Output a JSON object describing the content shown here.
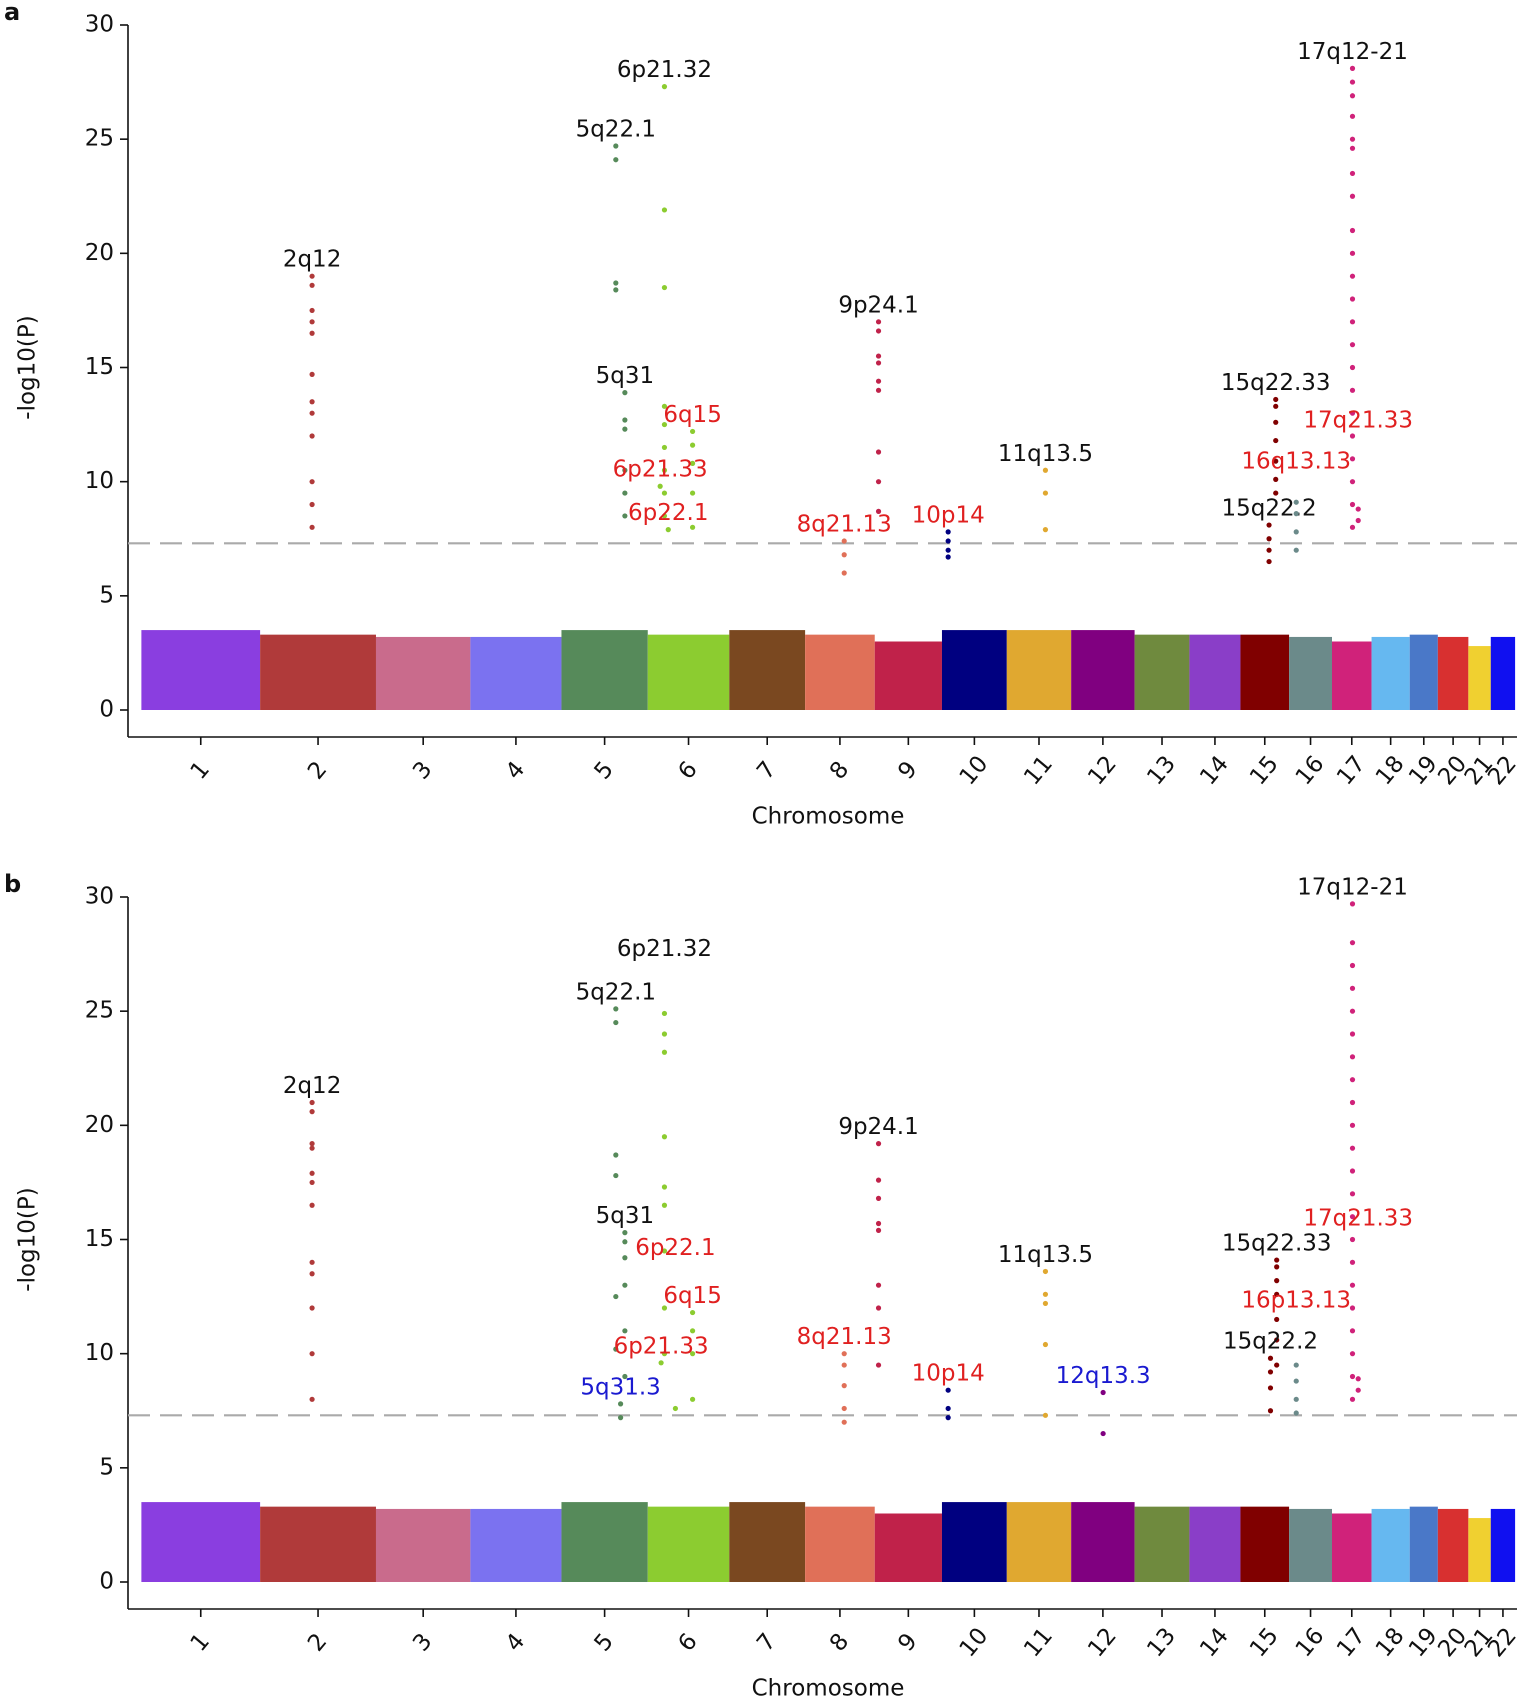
{
  "chart_data": [
    {
      "type": "scatter",
      "panel": "a",
      "xlabel": "Chromosome",
      "ylabel": "-log10(P)",
      "ylim": [
        0,
        30
      ],
      "yticks": [
        0,
        5,
        10,
        15,
        20,
        25,
        30
      ],
      "xlim": [
        -5,
        2885
      ],
      "threshold": 7.3,
      "series": [
        {
          "name": "1",
          "color": "#8a3ee0",
          "span": [
            0,
            249
          ],
          "background": 3.5,
          "loci": []
        },
        {
          "name": "2",
          "color": "#b03a3a",
          "span": [
            249,
            492
          ],
          "background": 3.3,
          "loci": [
            {
              "label": "2q12",
              "label_color": "#111111",
              "x": 358,
              "values": [
                19,
                18.6,
                17.5,
                17,
                16.5,
                14.7,
                13.5,
                13,
                12,
                10,
                9,
                8
              ]
            }
          ]
        },
        {
          "name": "3",
          "color": "#c96b8c",
          "span": [
            492,
            690
          ],
          "background": 3.2,
          "loci": []
        },
        {
          "name": "4",
          "color": "#7b72f0",
          "span": [
            690,
            881
          ],
          "background": 3.2,
          "loci": []
        },
        {
          "name": "5",
          "color": "#568a5a",
          "span": [
            881,
            1062
          ],
          "background": 3.5,
          "loci": [
            {
              "label": "5q22.1",
              "label_color": "#111111",
              "x": 995,
              "values": [
                24.7,
                24.1,
                18.7,
                18.4
              ]
            },
            {
              "label": "5q31",
              "label_color": "#111111",
              "x": 1014,
              "values": [
                13.9,
                12.7,
                12.3,
                10.5,
                9.5,
                8.5
              ]
            }
          ]
        },
        {
          "name": "6",
          "color": "#8ccc30",
          "span": [
            1062,
            1233
          ],
          "background": 3.3,
          "loci": [
            {
              "label": "6p21.32",
              "label_color": "#111111",
              "x": 1097,
              "values": [
                27.3,
                21.9,
                18.5,
                13.3,
                12.5,
                11.5,
                10.5,
                9.5,
                8.5
              ]
            },
            {
              "label": "6q15",
              "label_color": "#e02020",
              "x": 1156,
              "values": [
                12.2,
                11.6,
                10.8,
                9.5,
                8
              ]
            },
            {
              "label": "6p21.33",
              "label_color": "#e02020",
              "x": 1088,
              "values": [
                9.8
              ]
            },
            {
              "label": "6p22.1",
              "label_color": "#e02020",
              "x": 1105,
              "values": [
                7.9
              ]
            }
          ]
        },
        {
          "name": "7",
          "color": "#7a4820",
          "span": [
            1233,
            1392
          ],
          "background": 3.5,
          "loci": []
        },
        {
          "name": "8",
          "color": "#e07058",
          "span": [
            1392,
            1538
          ],
          "background": 3.3,
          "loci": [
            {
              "label": "8q21.13",
              "label_color": "#e02020",
              "x": 1474,
              "values": [
                7.4,
                6.8,
                6
              ]
            }
          ]
        },
        {
          "name": "9",
          "color": "#c0224a",
          "span": [
            1538,
            1679
          ],
          "background": 3.0,
          "loci": [
            {
              "label": "9p24.1",
              "label_color": "#111111",
              "x": 1546,
              "values": [
                17,
                16.6,
                15.5,
                15.2,
                14.4,
                14,
                11.3,
                10,
                8.7
              ]
            }
          ]
        },
        {
          "name": "10",
          "color": "#000080",
          "span": [
            1679,
            1815
          ],
          "background": 3.5,
          "loci": [
            {
              "label": "10p14",
              "label_color": "#e02020",
              "x": 1692,
              "values": [
                7.8,
                7.4,
                7,
                6.7
              ]
            }
          ]
        },
        {
          "name": "11",
          "color": "#e0a830",
          "span": [
            1815,
            1950
          ],
          "background": 3.5,
          "loci": [
            {
              "label": "11q13.5",
              "label_color": "#111111",
              "x": 1896,
              "values": [
                10.5,
                9.5,
                7.9
              ]
            }
          ]
        },
        {
          "name": "12",
          "color": "#800080",
          "span": [
            1950,
            2083
          ],
          "background": 3.5,
          "loci": []
        },
        {
          "name": "13",
          "color": "#6f8a3e",
          "span": [
            2083,
            2198
          ],
          "background": 3.3,
          "loci": []
        },
        {
          "name": "14",
          "color": "#8a3ec8",
          "span": [
            2198,
            2305
          ],
          "background": 3.3,
          "loci": []
        },
        {
          "name": "15",
          "color": "#800000",
          "span": [
            2305,
            2407
          ],
          "background": 3.3,
          "loci": [
            {
              "label": "15q22.33",
              "label_color": "#111111",
              "x": 2379,
              "values": [
                13.6,
                13.3,
                12.6,
                11.8,
                10.9,
                10.1,
                9.5
              ]
            },
            {
              "label": "15q22.2",
              "label_color": "#111111",
              "x": 2365,
              "values": [
                8.1,
                7.5,
                7,
                6.5
              ]
            }
          ]
        },
        {
          "name": "16",
          "color": "#6b8a8a",
          "span": [
            2407,
            2497
          ],
          "background": 3.2,
          "loci": [
            {
              "label": "16q13.13",
              "label_color": "#e02020",
              "x": 2422,
              "values": [
                9.1,
                8.6,
                7.8,
                7
              ]
            }
          ]
        },
        {
          "name": "17",
          "color": "#d0227a",
          "span": [
            2497,
            2580
          ],
          "background": 3.0,
          "loci": [
            {
              "label": "17q12-21",
              "label_color": "#111111",
              "x": 2540,
              "values": [
                28.1,
                27.5,
                26.9,
                26,
                25,
                24.6,
                23.5,
                22.5,
                21,
                20,
                19,
                18,
                17,
                16,
                15,
                14,
                13,
                12,
                11,
                10,
                9,
                8
              ]
            },
            {
              "label": "17q21.33",
              "label_color": "#e02020",
              "x": 2552,
              "values": [
                8.8,
                8.3
              ]
            }
          ]
        },
        {
          "name": "18",
          "color": "#66b8f0",
          "span": [
            2580,
            2660
          ],
          "background": 3.2,
          "loci": []
        },
        {
          "name": "19",
          "color": "#4a78c8",
          "span": [
            2660,
            2719
          ],
          "background": 3.3,
          "loci": []
        },
        {
          "name": "20",
          "color": "#d83030",
          "span": [
            2719,
            2783
          ],
          "background": 3.2,
          "loci": []
        },
        {
          "name": "21",
          "color": "#f0d030",
          "span": [
            2783,
            2830
          ],
          "background": 2.8,
          "loci": []
        },
        {
          "name": "22",
          "color": "#1010f0",
          "span": [
            2830,
            2881
          ],
          "background": 3.2,
          "loci": []
        }
      ]
    },
    {
      "type": "scatter",
      "panel": "b",
      "xlabel": "Chromosome",
      "ylabel": "-log10(P)",
      "ylim": [
        0,
        30
      ],
      "yticks": [
        0,
        5,
        10,
        15,
        20,
        25,
        30
      ],
      "xlim": [
        -5,
        2885
      ],
      "threshold": 7.3,
      "series": [
        {
          "name": "1",
          "color": "#8a3ee0",
          "span": [
            0,
            249
          ],
          "background": 3.5,
          "loci": []
        },
        {
          "name": "2",
          "color": "#b03a3a",
          "span": [
            249,
            492
          ],
          "background": 3.3,
          "loci": [
            {
              "label": "2q12",
              "label_color": "#111111",
              "x": 358,
              "values": [
                21,
                20.6,
                19.2,
                19,
                17.9,
                17.5,
                16.5,
                14,
                13.5,
                12,
                10,
                8
              ]
            }
          ]
        },
        {
          "name": "3",
          "color": "#c96b8c",
          "span": [
            492,
            690
          ],
          "background": 3.2,
          "loci": []
        },
        {
          "name": "4",
          "color": "#7b72f0",
          "span": [
            690,
            881
          ],
          "background": 3.2,
          "loci": []
        },
        {
          "name": "5",
          "color": "#568a5a",
          "span": [
            881,
            1062
          ],
          "background": 3.5,
          "loci": [
            {
              "label": "5q22.1",
              "label_color": "#111111",
              "x": 995,
              "values": [
                25.1,
                24.5,
                18.7,
                17.8,
                12.5,
                10.2
              ]
            },
            {
              "label": "5q31",
              "label_color": "#111111",
              "x": 1014,
              "values": [
                15.3,
                14.9,
                14.2,
                13,
                11,
                9
              ]
            },
            {
              "label": "5q31.3",
              "label_color": "#1a1ad0",
              "x": 1005,
              "values": [
                7.8,
                7.2
              ]
            }
          ]
        },
        {
          "name": "6",
          "color": "#8ccc30",
          "span": [
            1062,
            1233
          ],
          "background": 3.3,
          "loci": [
            {
              "label": "6p21.32",
              "label_color": "#111111",
              "x": 1097,
              "values": [
                24.9,
                24,
                23.2,
                19.5,
                17.3,
                16.5,
                14.5,
                12,
                10
              ]
            },
            {
              "label": "6q15",
              "label_color": "#e02020",
              "x": 1156,
              "values": [
                11.8,
                11,
                10,
                8
              ]
            },
            {
              "label": "6p21.33",
              "label_color": "#e02020",
              "x": 1090,
              "values": [
                9.6
              ]
            },
            {
              "label": "6p22.1",
              "label_color": "#e02020",
              "x": 1120,
              "values": [
                7.6
              ]
            }
          ]
        },
        {
          "name": "7",
          "color": "#7a4820",
          "span": [
            1233,
            1392
          ],
          "background": 3.5,
          "loci": []
        },
        {
          "name": "8",
          "color": "#e07058",
          "span": [
            1392,
            1538
          ],
          "background": 3.3,
          "loci": [
            {
              "label": "8q21.13",
              "label_color": "#e02020",
              "x": 1474,
              "values": [
                10,
                9.5,
                8.6,
                7.6,
                7
              ]
            }
          ]
        },
        {
          "name": "9",
          "color": "#c0224a",
          "span": [
            1538,
            1679
          ],
          "background": 3.0,
          "loci": [
            {
              "label": "9p24.1",
              "label_color": "#111111",
              "x": 1546,
              "values": [
                19.2,
                17.6,
                16.8,
                15.7,
                15.4,
                13,
                12,
                9.5
              ]
            }
          ]
        },
        {
          "name": "10",
          "color": "#000080",
          "span": [
            1679,
            1815
          ],
          "background": 3.5,
          "loci": [
            {
              "label": "10p14",
              "label_color": "#e02020",
              "x": 1692,
              "values": [
                8.4,
                7.6,
                7.2
              ]
            }
          ]
        },
        {
          "name": "11",
          "color": "#e0a830",
          "span": [
            1815,
            1950
          ],
          "background": 3.5,
          "loci": [
            {
              "label": "11q13.5",
              "label_color": "#111111",
              "x": 1896,
              "values": [
                13.6,
                12.6,
                12.2,
                10.4,
                7.3
              ]
            }
          ]
        },
        {
          "name": "12",
          "color": "#800080",
          "span": [
            1950,
            2083
          ],
          "background": 3.5,
          "loci": [
            {
              "label": "12q13.3",
              "label_color": "#1a1ad0",
              "x": 2017,
              "values": [
                8.3,
                6.5
              ]
            }
          ]
        },
        {
          "name": "13",
          "color": "#6f8a3e",
          "span": [
            2083,
            2198
          ],
          "background": 3.3,
          "loci": []
        },
        {
          "name": "14",
          "color": "#8a3ec8",
          "span": [
            2198,
            2305
          ],
          "background": 3.3,
          "loci": []
        },
        {
          "name": "15",
          "color": "#800000",
          "span": [
            2305,
            2407
          ],
          "background": 3.3,
          "loci": [
            {
              "label": "15q22.33",
              "label_color": "#111111",
              "x": 2381,
              "values": [
                14.1,
                13.8,
                13.2,
                12.6,
                11.5,
                10.6,
                9.5
              ]
            },
            {
              "label": "15q22.2",
              "label_color": "#111111",
              "x": 2368,
              "values": [
                9.8,
                9.2,
                8.5,
                7.5
              ]
            }
          ]
        },
        {
          "name": "16",
          "color": "#6b8a8a",
          "span": [
            2407,
            2497
          ],
          "background": 3.2,
          "loci": [
            {
              "label": "16p13.13",
              "label_color": "#e02020",
              "x": 2422,
              "values": [
                9.5,
                8.8,
                8,
                7.4
              ]
            }
          ]
        },
        {
          "name": "17",
          "color": "#d0227a",
          "span": [
            2497,
            2580
          ],
          "background": 3.0,
          "loci": [
            {
              "label": "17q12-21",
              "label_color": "#111111",
              "x": 2540,
              "values": [
                29.7,
                28,
                27,
                26,
                25,
                24,
                23,
                22,
                21,
                20,
                19,
                18,
                17,
                16,
                15,
                14,
                13,
                12,
                11,
                10,
                9,
                8
              ]
            },
            {
              "label": "17q21.33",
              "label_color": "#e02020",
              "x": 2552,
              "values": [
                8.9,
                8.4
              ]
            }
          ]
        },
        {
          "name": "18",
          "color": "#66b8f0",
          "span": [
            2580,
            2660
          ],
          "background": 3.2,
          "loci": []
        },
        {
          "name": "19",
          "color": "#4a78c8",
          "span": [
            2660,
            2719
          ],
          "background": 3.3,
          "loci": []
        },
        {
          "name": "20",
          "color": "#d83030",
          "span": [
            2719,
            2783
          ],
          "background": 3.2,
          "loci": []
        },
        {
          "name": "21",
          "color": "#f0d030",
          "span": [
            2783,
            2830
          ],
          "background": 2.8,
          "loci": []
        },
        {
          "name": "22",
          "color": "#1010f0",
          "span": [
            2830,
            2881
          ],
          "background": 3.2,
          "loci": []
        }
      ]
    }
  ]
}
